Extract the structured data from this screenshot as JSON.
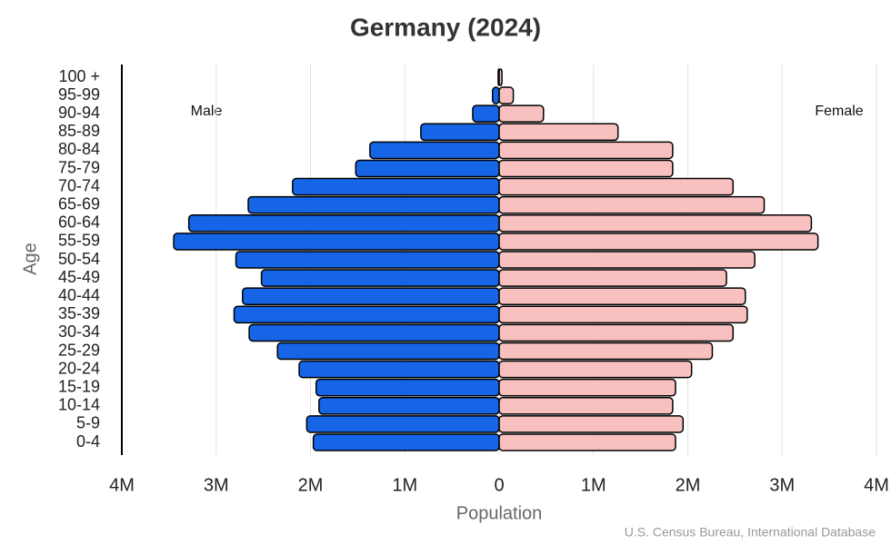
{
  "chart_data": {
    "type": "pyramid",
    "title": "Germany (2024)",
    "x_label": "Population",
    "y_label": "Age",
    "source": "U.S. Census Bureau, International Database",
    "categories": [
      "0-4",
      "5-9",
      "10-14",
      "15-19",
      "20-24",
      "25-29",
      "30-34",
      "35-39",
      "40-44",
      "45-49",
      "50-54",
      "55-59",
      "60-64",
      "65-69",
      "70-74",
      "75-79",
      "80-84",
      "85-89",
      "90-94",
      "95-99",
      "100 +"
    ],
    "series": [
      {
        "name": "Male",
        "color": "#1565e6",
        "values": [
          -1970000,
          -2040000,
          -1910000,
          -1940000,
          -2120000,
          -2350000,
          -2650000,
          -2810000,
          -2720000,
          -2520000,
          -2790000,
          -3450000,
          -3290000,
          -2660000,
          -2190000,
          -1520000,
          -1370000,
          -830000,
          -280000,
          -70000,
          -10000
        ]
      },
      {
        "name": "Female",
        "color": "#f9c0c0",
        "values": [
          1870000,
          1950000,
          1840000,
          1870000,
          2040000,
          2260000,
          2480000,
          2630000,
          2610000,
          2410000,
          2710000,
          3380000,
          3310000,
          2810000,
          2480000,
          1840000,
          1840000,
          1260000,
          470000,
          150000,
          30000
        ]
      }
    ],
    "xlim": [
      -4000000,
      4000000
    ],
    "xticks": [
      {
        "value": -4000000,
        "label": "4M"
      },
      {
        "value": -3000000,
        "label": "3M"
      },
      {
        "value": -2000000,
        "label": "2M"
      },
      {
        "value": -1000000,
        "label": "1M"
      },
      0,
      {
        "value": 1000000,
        "label": "1M"
      },
      {
        "value": 2000000,
        "label": "2M"
      },
      {
        "value": 3000000,
        "label": "3M"
      },
      {
        "value": 4000000,
        "label": "4M"
      }
    ],
    "grid": true
  }
}
